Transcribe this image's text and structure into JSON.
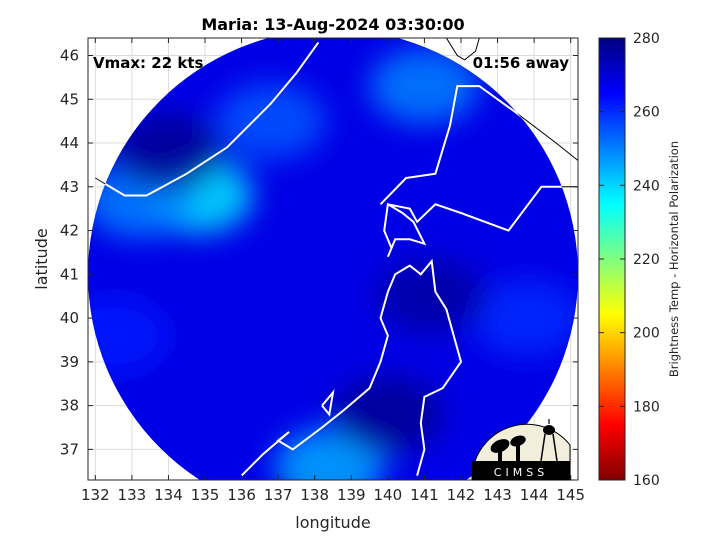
{
  "chart_data": {
    "type": "heatmap",
    "title": "Maria: 13-Aug-2024 03:30:00",
    "annotations": {
      "vmax": "Vmax: 22 kts",
      "time_away": "01:56 away"
    },
    "xlabel": "longitude",
    "ylabel": "latitude",
    "xlim": [
      131.8,
      145.2
    ],
    "ylim": [
      36.3,
      46.4
    ],
    "x_ticks": [
      132,
      133,
      134,
      135,
      136,
      137,
      138,
      139,
      140,
      141,
      142,
      143,
      144,
      145
    ],
    "y_ticks": [
      37,
      38,
      39,
      40,
      41,
      42,
      43,
      44,
      45,
      46
    ],
    "grid": true,
    "swath": {
      "center_lon": 138.5,
      "center_lat": 41.0,
      "radius_lon": 6.7
    },
    "colorbar": {
      "label": "Brightness Temp - Horizontal Polarization",
      "range": [
        160,
        280
      ],
      "ticks": [
        160,
        180,
        200,
        220,
        240,
        260,
        280
      ],
      "colors": [
        "#800000",
        "#ff0000",
        "#ff8000",
        "#ffff00",
        "#80ff80",
        "#00ffff",
        "#0080ff",
        "#0000ff",
        "#000080"
      ]
    },
    "field": {
      "background_tb": 268,
      "features": [
        {
          "lon": 134.8,
          "lat": 42.8,
          "tb": 238
        },
        {
          "lon": 133.2,
          "lat": 42.7,
          "tb": 250
        },
        {
          "lon": 136.8,
          "lat": 44.5,
          "tb": 255
        },
        {
          "lon": 141.0,
          "lat": 45.3,
          "tb": 250
        },
        {
          "lon": 143.8,
          "lat": 40.0,
          "tb": 260
        },
        {
          "lon": 132.5,
          "lat": 39.6,
          "tb": 262
        },
        {
          "lon": 138.4,
          "lat": 36.6,
          "tb": 245
        },
        {
          "lon": 141.2,
          "lat": 40.5,
          "tb": 276
        },
        {
          "lon": 140.0,
          "lat": 37.8,
          "tb": 278
        },
        {
          "lon": 134.0,
          "lat": 43.8,
          "tb": 278
        }
      ]
    },
    "logo": {
      "text": "CIMSS"
    }
  }
}
